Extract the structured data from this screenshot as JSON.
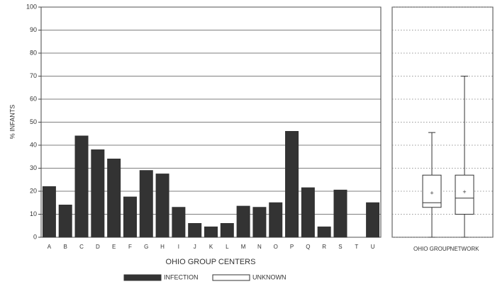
{
  "chart_data": [
    {
      "type": "bar",
      "y_label": "% INFANTS",
      "x_label": "OHIO GROUP CENTERS",
      "categories": [
        "A",
        "B",
        "C",
        "D",
        "E",
        "F",
        "G",
        "H",
        "I",
        "J",
        "K",
        "L",
        "M",
        "N",
        "O",
        "P",
        "Q",
        "R",
        "S",
        "T",
        "U"
      ],
      "series": [
        {
          "name": "INFECTION",
          "color": "#333333",
          "values": [
            22,
            14,
            44,
            38,
            34,
            17.5,
            29,
            27.5,
            13,
            6,
            4.5,
            6,
            13.5,
            13,
            15,
            46,
            21.5,
            4.5,
            20.5,
            0,
            15
          ]
        },
        {
          "name": "UNKNOWN",
          "color": "#ffffff",
          "values": [
            null,
            null,
            null,
            null,
            null,
            null,
            null,
            null,
            null,
            null,
            null,
            null,
            null,
            null,
            null,
            null,
            null,
            null,
            null,
            null,
            null
          ]
        }
      ],
      "ylim": [
        0,
        100
      ],
      "yticks": [
        0,
        10,
        20,
        30,
        40,
        50,
        60,
        70,
        80,
        90,
        100
      ],
      "grid": true
    },
    {
      "type": "box",
      "categories": [
        "OHIO GROUP",
        "NETWORK"
      ],
      "boxes": [
        {
          "min": 0,
          "q1": 13,
          "median": 15,
          "q3": 27,
          "max": 45.5,
          "mean": 19
        },
        {
          "min": 0,
          "q1": 10,
          "median": 17,
          "q3": 27,
          "max": 70,
          "mean": 19.5
        }
      ],
      "ylim": [
        0,
        100
      ],
      "yticks": [
        0,
        10,
        20,
        30,
        40,
        50,
        60,
        70,
        80,
        90,
        100
      ],
      "grid": true
    }
  ]
}
